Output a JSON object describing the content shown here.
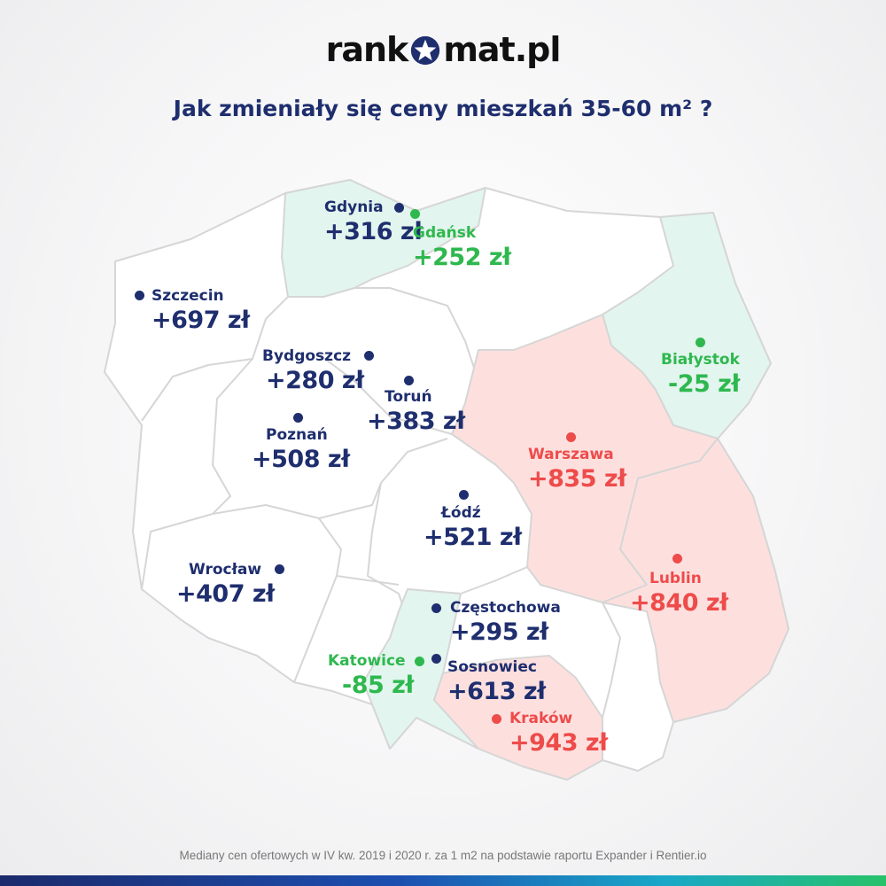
{
  "logo": {
    "text_left": "rank",
    "text_right": "mat.pl"
  },
  "title": "Jak zmieniały się ceny mieszkań 35-60 m² ?",
  "footer": "Mediany cen ofertowych w IV kw. 2019 i 2020 r. za 1 m2 na podstawie raportu Expander i Rentier.io",
  "colors": {
    "dark_blue": "#1e2e6e",
    "green": "#2eb84e",
    "red": "#ee4b4b",
    "region_green": "#e2f5ee",
    "region_red": "#fde0de",
    "region_white": "#ffffff",
    "border": "#d6d6d6"
  },
  "cities": [
    {
      "id": "gdynia",
      "name": "Gdynia",
      "value": "+316 zł",
      "color": "dark_blue"
    },
    {
      "id": "gdansk",
      "name": "Gdańsk",
      "value": "+252 zł",
      "color": "green"
    },
    {
      "id": "szczecin",
      "name": "Szczecin",
      "value": "+697 zł",
      "color": "dark_blue"
    },
    {
      "id": "bialystok",
      "name": "Białystok",
      "value": "-25 zł",
      "color": "green"
    },
    {
      "id": "bydgoszcz",
      "name": "Bydgoszcz",
      "value": "+280 zł",
      "color": "dark_blue"
    },
    {
      "id": "torun",
      "name": "Toruń",
      "value": "+383 zł",
      "color": "dark_blue"
    },
    {
      "id": "poznan",
      "name": "Poznań",
      "value": "+508 zł",
      "color": "dark_blue"
    },
    {
      "id": "warszawa",
      "name": "Warszawa",
      "value": "+835 zł",
      "color": "red"
    },
    {
      "id": "lodz",
      "name": "Łódź",
      "value": "+521 zł",
      "color": "dark_blue"
    },
    {
      "id": "wroclaw",
      "name": "Wrocław",
      "value": "+407 zł",
      "color": "dark_blue"
    },
    {
      "id": "lublin",
      "name": "Lublin",
      "value": "+840 zł",
      "color": "red"
    },
    {
      "id": "czestochowa",
      "name": "Częstochowa",
      "value": "+295 zł",
      "color": "dark_blue"
    },
    {
      "id": "katowice",
      "name": "Katowice",
      "value": "-85 zł",
      "color": "green"
    },
    {
      "id": "sosnowiec",
      "name": "Sosnowiec",
      "value": "+613 zł",
      "color": "dark_blue"
    },
    {
      "id": "krakow",
      "name": "Kraków",
      "value": "+943 zł",
      "color": "red"
    }
  ],
  "regions": [
    {
      "id": "pomorskie",
      "fill": "region_green"
    },
    {
      "id": "podlaskie",
      "fill": "region_green"
    },
    {
      "id": "slaskie",
      "fill": "region_green"
    },
    {
      "id": "mazowieckie",
      "fill": "region_red"
    },
    {
      "id": "lubelskie",
      "fill": "region_red"
    },
    {
      "id": "malopolskie",
      "fill": "region_red"
    }
  ]
}
